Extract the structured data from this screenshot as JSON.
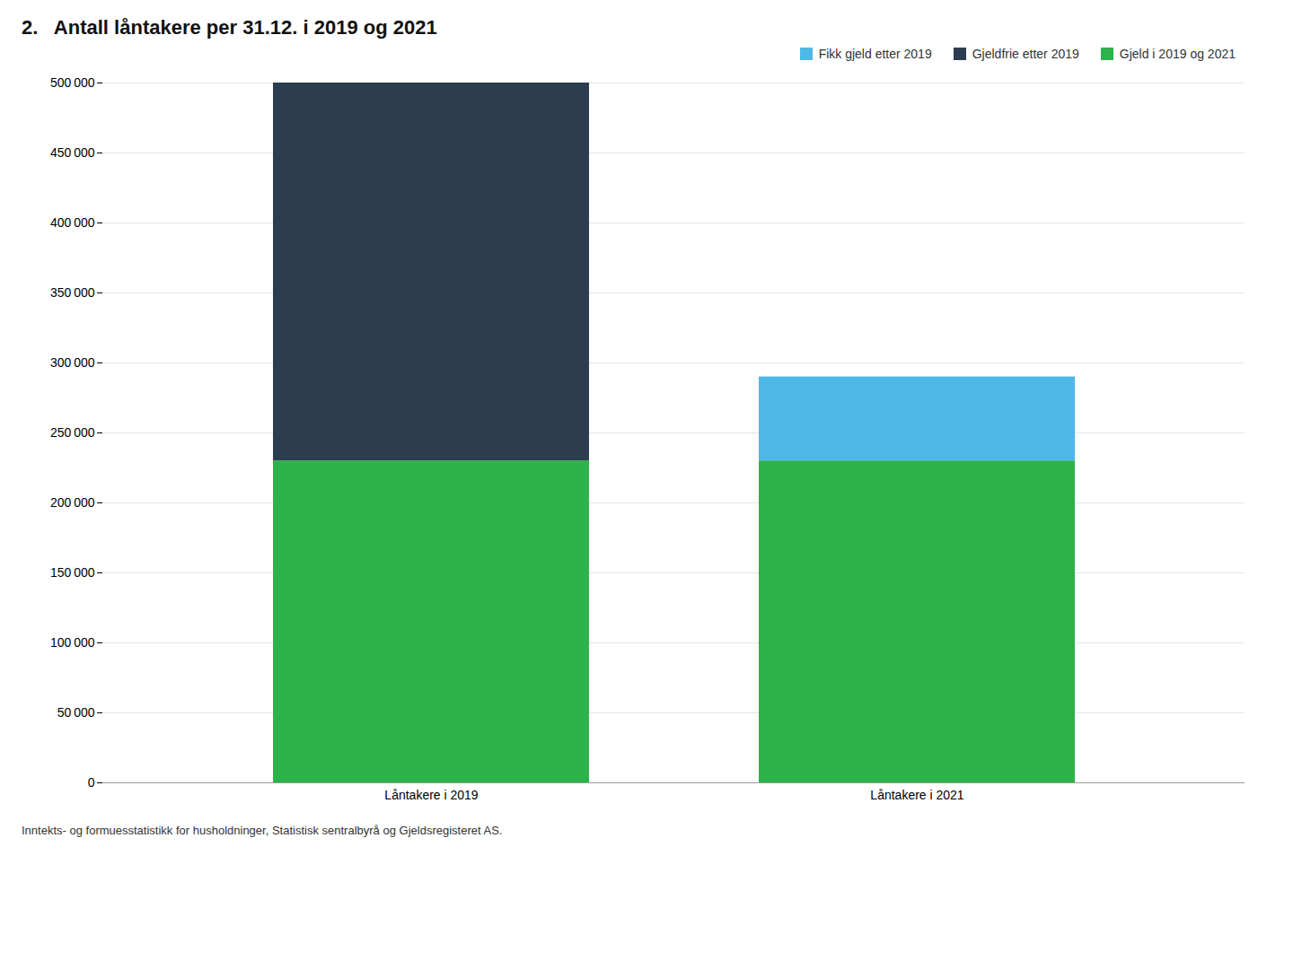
{
  "chart_data": {
    "type": "bar",
    "stacked": true,
    "title": "2.   Antall låntakere per 31.12. i 2019 og 2021",
    "source": "Inntekts- og formuesstatistikk for husholdninger, Statistisk sentralbyrå og Gjeldsregisteret AS.",
    "categories": [
      "Låntakere i 2019",
      "Låntakere i 2021"
    ],
    "series": [
      {
        "name": "Gjeld i 2019 og 2021",
        "color": "#2db34a",
        "values": [
          230000,
          230000
        ]
      },
      {
        "name": "Gjeldfrie etter 2019",
        "color": "#2b3d4f",
        "values": [
          270000,
          0
        ]
      },
      {
        "name": "Fikk gjeld etter 2019",
        "color": "#4db8e8",
        "values": [
          0,
          60000
        ]
      }
    ],
    "ylim": [
      0,
      500000
    ],
    "yticks": [
      0,
      {
        "value": 50000,
        "label": "50 000"
      },
      {
        "value": 100000,
        "label": "100 000"
      },
      {
        "value": 150000,
        "label": "150 000"
      },
      {
        "value": 200000,
        "label": "200 000"
      },
      {
        "value": 250000,
        "label": "250 000"
      },
      {
        "value": 300000,
        "label": "300 000"
      },
      {
        "value": 350000,
        "label": "350 000"
      },
      {
        "value": 400000,
        "label": "400 000"
      },
      {
        "value": 450000,
        "label": "450 000"
      },
      {
        "value": 500000,
        "label": "500 000"
      }
    ],
    "grid": true,
    "legend": "upper right"
  }
}
